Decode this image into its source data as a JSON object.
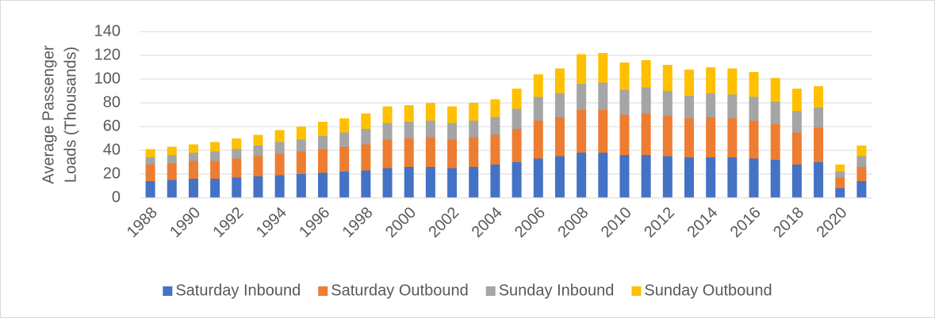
{
  "chart_data": {
    "type": "stacked_bar",
    "ylabel": [
      "Average Passenger",
      "Loads (Thousands)"
    ],
    "categories": [
      "1988",
      null,
      "1990",
      null,
      "1992",
      null,
      "1994",
      null,
      "1996",
      null,
      "1998",
      null,
      "2000",
      null,
      "2002",
      null,
      "2004",
      null,
      "2006",
      null,
      "2008",
      null,
      "2010",
      null,
      "2012",
      null,
      "2014",
      null,
      "2016",
      null,
      "2018",
      null,
      "2020",
      null
    ],
    "series": [
      {
        "name": "Saturday Inbound",
        "color": "#4472c4",
        "values": [
          14,
          15,
          16,
          16,
          17,
          18,
          19,
          20,
          21,
          22,
          23,
          25,
          26,
          26,
          25,
          26,
          28,
          30,
          33,
          35,
          38,
          38,
          36,
          36,
          35,
          34,
          34,
          34,
          33,
          32,
          28,
          30,
          8,
          14
        ]
      },
      {
        "name": "Saturday Outbound",
        "color": "#ed7d31",
        "values": [
          14,
          14,
          15,
          15,
          16,
          17,
          18,
          19,
          20,
          21,
          22,
          24,
          24,
          25,
          24,
          25,
          25,
          28,
          32,
          33,
          36,
          36,
          34,
          35,
          34,
          33,
          34,
          33,
          32,
          30,
          27,
          29,
          9,
          12
        ]
      },
      {
        "name": "Sunday Inbound",
        "color": "#a5a5a5",
        "values": [
          6,
          7,
          7,
          8,
          8,
          9,
          10,
          10,
          11,
          12,
          13,
          14,
          14,
          14,
          14,
          14,
          15,
          17,
          20,
          20,
          22,
          23,
          21,
          22,
          21,
          19,
          20,
          20,
          20,
          19,
          18,
          17,
          5,
          9
        ]
      },
      {
        "name": "Sunday Outbound",
        "color": "#ffc000",
        "values": [
          7,
          7,
          7,
          8,
          9,
          9,
          10,
          11,
          12,
          12,
          13,
          14,
          14,
          15,
          14,
          15,
          15,
          17,
          19,
          21,
          25,
          25,
          23,
          23,
          22,
          22,
          22,
          22,
          21,
          20,
          19,
          18,
          6,
          9
        ]
      }
    ],
    "ylim": [
      0,
      140
    ],
    "yticks": [
      0,
      20,
      40,
      60,
      80,
      100,
      120,
      140
    ],
    "grid": true,
    "legend": "bottom"
  }
}
